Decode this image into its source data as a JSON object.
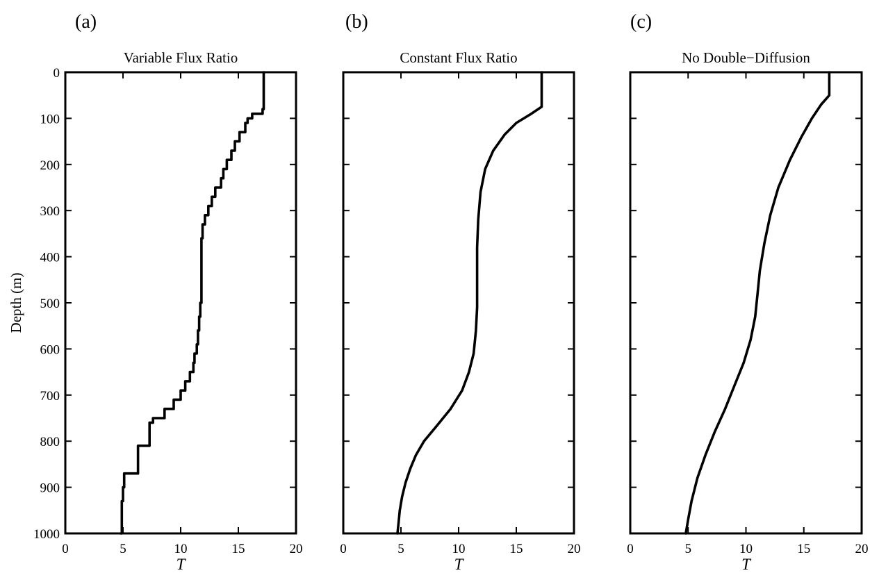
{
  "chart_data": [
    {
      "type": "line",
      "panel_label": "(a)",
      "title": "Variable Flux Ratio",
      "xlabel": "T",
      "ylabel": "Depth (m)",
      "xlim": [
        0,
        20
      ],
      "ylim": [
        0,
        1000
      ],
      "y_reversed": true,
      "xticks": [
        0,
        5,
        10,
        15,
        20
      ],
      "yticks": [
        0,
        100,
        200,
        300,
        400,
        500,
        600,
        700,
        800,
        900,
        1000
      ],
      "series": [
        {
          "step": true,
          "x": [
            17.2,
            17.2,
            17.1,
            16.2,
            15.8,
            15.6,
            15.1,
            14.7,
            14.4,
            14.0,
            13.7,
            13.5,
            13.0,
            12.7,
            12.4,
            12.1,
            11.9,
            11.8,
            11.8,
            11.8,
            11.7,
            11.6,
            11.5,
            11.4,
            11.2,
            11.1,
            10.8,
            10.4,
            10.0,
            9.4,
            8.6,
            7.6,
            7.3,
            6.3,
            6.3,
            5.1,
            5.0,
            4.9,
            4.9,
            4.8
          ],
          "y": [
            0,
            75,
            80,
            90,
            100,
            110,
            130,
            150,
            170,
            190,
            210,
            230,
            250,
            270,
            290,
            310,
            330,
            360,
            400,
            450,
            500,
            530,
            560,
            590,
            610,
            630,
            650,
            670,
            690,
            710,
            730,
            750,
            760,
            810,
            840,
            870,
            900,
            930,
            960,
            1000
          ]
        }
      ]
    },
    {
      "type": "line",
      "panel_label": "(b)",
      "title": "Constant Flux Ratio",
      "xlabel": "T",
      "ylabel": "",
      "xlim": [
        0,
        20
      ],
      "ylim": [
        0,
        1000
      ],
      "y_reversed": true,
      "xticks": [
        0,
        5,
        10,
        15,
        20
      ],
      "yticks": [
        0,
        100,
        200,
        300,
        400,
        500,
        600,
        700,
        800,
        900,
        1000
      ],
      "series": [
        {
          "step": false,
          "x": [
            17.2,
            17.2,
            16.3,
            15.0,
            14.0,
            13.0,
            12.3,
            11.9,
            11.7,
            11.6,
            11.6,
            11.6,
            11.5,
            11.3,
            10.9,
            10.3,
            9.3,
            8.0,
            7.0,
            6.3,
            5.8,
            5.4,
            5.1,
            4.9,
            4.8,
            4.7
          ],
          "y": [
            0,
            75,
            90,
            110,
            135,
            170,
            210,
            260,
            320,
            380,
            450,
            510,
            560,
            610,
            650,
            690,
            730,
            770,
            800,
            830,
            860,
            890,
            920,
            950,
            975,
            1000
          ]
        }
      ]
    },
    {
      "type": "line",
      "panel_label": "(c)",
      "title": "No Double−Diffusion",
      "xlabel": "T",
      "ylabel": "",
      "xlim": [
        0,
        20
      ],
      "ylim": [
        0,
        1000
      ],
      "y_reversed": true,
      "xticks": [
        0,
        5,
        10,
        15,
        20
      ],
      "yticks": [
        0,
        100,
        200,
        300,
        400,
        500,
        600,
        700,
        800,
        900,
        1000
      ],
      "series": [
        {
          "step": false,
          "x": [
            17.2,
            17.2,
            16.5,
            15.7,
            14.8,
            13.8,
            12.8,
            12.1,
            11.6,
            11.2,
            11.0,
            10.8,
            10.4,
            9.8,
            9.0,
            8.2,
            7.3,
            6.5,
            5.8,
            5.3,
            5.0,
            4.8
          ],
          "y": [
            0,
            50,
            70,
            100,
            140,
            190,
            250,
            310,
            370,
            430,
            480,
            530,
            580,
            630,
            680,
            730,
            780,
            830,
            880,
            930,
            970,
            1000
          ]
        }
      ]
    }
  ]
}
